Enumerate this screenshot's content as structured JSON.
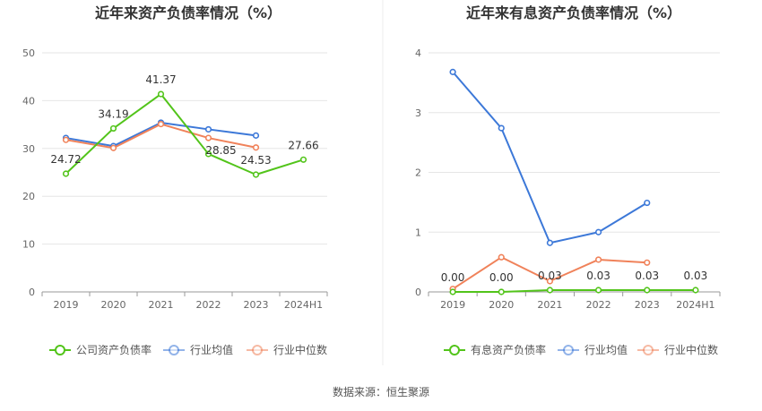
{
  "source": "数据来源：恒生聚源",
  "chart_data": [
    {
      "type": "line",
      "title": "近年来资产负债率情况（%）",
      "x": [
        "2019",
        "2020",
        "2021",
        "2022",
        "2023",
        "2024H1"
      ],
      "ylim": [
        0,
        50
      ],
      "yticks": [
        0,
        10,
        20,
        30,
        40,
        50
      ],
      "grid": true,
      "legend_position": "bottom",
      "series": [
        {
          "name": "公司资产负债率",
          "color": "#52c41a",
          "values": [
            24.72,
            34.19,
            41.37,
            28.85,
            24.53,
            27.66
          ],
          "labels": [
            "24.72",
            "34.19",
            "41.37",
            "28.85",
            "24.53",
            "27.66"
          ]
        },
        {
          "name": "行业均值",
          "color": "#3c78d8",
          "values": [
            32.2,
            30.5,
            35.4,
            34.0,
            32.7,
            null
          ]
        },
        {
          "name": "行业中位数",
          "color": "#f0825a",
          "values": [
            31.8,
            30.1,
            35.1,
            32.2,
            30.2,
            null
          ]
        }
      ]
    },
    {
      "type": "line",
      "title": "近年来有息资产负债率情况（%）",
      "x": [
        "2019",
        "2020",
        "2021",
        "2022",
        "2023",
        "2024H1"
      ],
      "ylim": [
        0,
        4
      ],
      "yticks": [
        0,
        1,
        2,
        3,
        4
      ],
      "grid": true,
      "legend_position": "bottom",
      "series": [
        {
          "name": "有息资产负债率",
          "color": "#52c41a",
          "values": [
            0.0,
            0.0,
            0.03,
            0.03,
            0.03,
            0.03
          ],
          "labels": [
            "0.00",
            "0.00",
            "0.03",
            "0.03",
            "0.03",
            "0.03"
          ]
        },
        {
          "name": "行业均值",
          "color": "#3c78d8",
          "values": [
            3.68,
            2.74,
            0.82,
            1.0,
            1.49,
            null
          ]
        },
        {
          "name": "行业中位数",
          "color": "#f0825a",
          "values": [
            0.05,
            0.58,
            0.18,
            0.54,
            0.49,
            null
          ]
        }
      ]
    }
  ]
}
